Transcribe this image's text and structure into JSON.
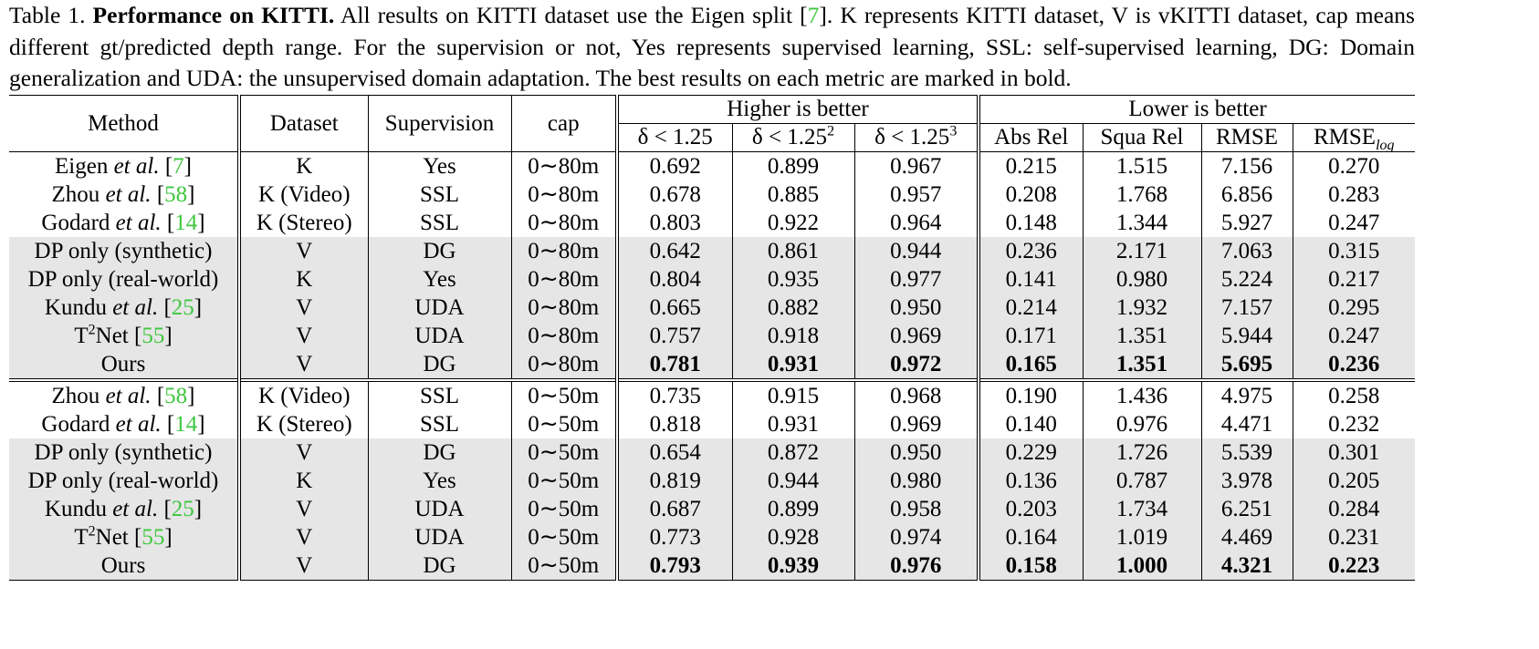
{
  "caption": [
    {
      "t": "Table 1. "
    },
    {
      "t": "Performance on KITTI.",
      "b": true
    },
    {
      "t": " All results on KITTI dataset use the Eigen split ["
    },
    {
      "t": "7",
      "ref": true
    },
    {
      "t": "]. K represents KITTI dataset, V is vKITTI dataset, cap means different gt/predicted depth range. For the supervision or not, Yes represents supervised learning, SSL: self-supervised learning, DG: Domain generalization and UDA: the unsupervised domain adaptation. The best results on each metric are marked in bold."
    }
  ],
  "table": {
    "header": {
      "method": "Method",
      "dataset": "Dataset",
      "supervision": "Supervision",
      "cap": "cap",
      "higher": "Higher is better",
      "lower": "Lower is better",
      "metrics": [
        {
          "text": "δ < 1.25"
        },
        {
          "text": "δ < 1.25",
          "sup": "2"
        },
        {
          "text": "δ < 1.25",
          "sup": "3"
        },
        {
          "text": "Abs Rel"
        },
        {
          "text": "Squa Rel"
        },
        {
          "text": "RMSE"
        },
        {
          "text": "RMSE",
          "sub": "log"
        }
      ]
    },
    "groups": [
      {
        "rows": [
          {
            "method": [
              {
                "t": "Eigen "
              },
              {
                "t": "et al.",
                "i": true
              },
              {
                "t": " ["
              },
              {
                "t": "7",
                "ref": true
              },
              {
                "t": "]"
              }
            ],
            "cells": [
              "K",
              "Yes",
              "0∼80m",
              "0.692",
              "0.899",
              "0.967",
              "0.215",
              "1.515",
              "7.156",
              "0.270"
            ],
            "shaded": false,
            "bold": false
          },
          {
            "method": [
              {
                "t": "Zhou "
              },
              {
                "t": "et al.",
                "i": true
              },
              {
                "t": " ["
              },
              {
                "t": "58",
                "ref": true
              },
              {
                "t": "]"
              }
            ],
            "cells": [
              "K (Video)",
              "SSL",
              "0∼80m",
              "0.678",
              "0.885",
              "0.957",
              "0.208",
              "1.768",
              "6.856",
              "0.283"
            ],
            "shaded": false,
            "bold": false
          },
          {
            "method": [
              {
                "t": "Godard "
              },
              {
                "t": "et al.",
                "i": true
              },
              {
                "t": " ["
              },
              {
                "t": "14",
                "ref": true
              },
              {
                "t": "]"
              }
            ],
            "cells": [
              "K (Stereo)",
              "SSL",
              "0∼80m",
              "0.803",
              "0.922",
              "0.964",
              "0.148",
              "1.344",
              "5.927",
              "0.247"
            ],
            "shaded": false,
            "bold": false
          },
          {
            "method": [
              {
                "t": "DP only (synthetic)"
              }
            ],
            "cells": [
              "V",
              "DG",
              "0∼80m",
              "0.642",
              "0.861",
              "0.944",
              "0.236",
              "2.171",
              "7.063",
              "0.315"
            ],
            "shaded": true,
            "bold": false
          },
          {
            "method": [
              {
                "t": "DP only (real-world)"
              }
            ],
            "cells": [
              "K",
              "Yes",
              "0∼80m",
              "0.804",
              "0.935",
              "0.977",
              "0.141",
              "0.980",
              "5.224",
              "0.217"
            ],
            "shaded": true,
            "bold": false
          },
          {
            "method": [
              {
                "t": "Kundu "
              },
              {
                "t": "et al.",
                "i": true
              },
              {
                "t": " ["
              },
              {
                "t": "25",
                "ref": true
              },
              {
                "t": "]"
              }
            ],
            "cells": [
              "V",
              "UDA",
              "0∼80m",
              "0.665",
              "0.882",
              "0.950",
              "0.214",
              "1.932",
              "7.157",
              "0.295"
            ],
            "shaded": true,
            "bold": false
          },
          {
            "method": [
              {
                "t": "T"
              },
              {
                "t": "2",
                "sup": true
              },
              {
                "t": "Net ["
              },
              {
                "t": "55",
                "ref": true
              },
              {
                "t": "]"
              }
            ],
            "cells": [
              "V",
              "UDA",
              "0∼80m",
              "0.757",
              "0.918",
              "0.969",
              "0.171",
              "1.351",
              "5.944",
              "0.247"
            ],
            "shaded": true,
            "bold": false
          },
          {
            "method": [
              {
                "t": "Ours"
              }
            ],
            "cells": [
              "V",
              "DG",
              "0∼80m",
              "0.781",
              "0.931",
              "0.972",
              "0.165",
              "1.351",
              "5.695",
              "0.236"
            ],
            "shaded": true,
            "bold": true
          }
        ]
      },
      {
        "rows": [
          {
            "method": [
              {
                "t": "Zhou "
              },
              {
                "t": "et al.",
                "i": true
              },
              {
                "t": " ["
              },
              {
                "t": "58",
                "ref": true
              },
              {
                "t": "]"
              }
            ],
            "cells": [
              "K (Video)",
              "SSL",
              "0∼50m",
              "0.735",
              "0.915",
              "0.968",
              "0.190",
              "1.436",
              "4.975",
              "0.258"
            ],
            "shaded": false,
            "bold": false
          },
          {
            "method": [
              {
                "t": "Godard "
              },
              {
                "t": "et al.",
                "i": true
              },
              {
                "t": " ["
              },
              {
                "t": "14",
                "ref": true
              },
              {
                "t": "]"
              }
            ],
            "cells": [
              "K (Stereo)",
              "SSL",
              "0∼50m",
              "0.818",
              "0.931",
              "0.969",
              "0.140",
              "0.976",
              "4.471",
              "0.232"
            ],
            "shaded": false,
            "bold": false
          },
          {
            "method": [
              {
                "t": "DP only (synthetic)"
              }
            ],
            "cells": [
              "V",
              "DG",
              "0∼50m",
              "0.654",
              "0.872",
              "0.950",
              "0.229",
              "1.726",
              "5.539",
              "0.301"
            ],
            "shaded": true,
            "bold": false
          },
          {
            "method": [
              {
                "t": "DP only (real-world)"
              }
            ],
            "cells": [
              "K",
              "Yes",
              "0∼50m",
              "0.819",
              "0.944",
              "0.980",
              "0.136",
              "0.787",
              "3.978",
              "0.205"
            ],
            "shaded": true,
            "bold": false
          },
          {
            "method": [
              {
                "t": "Kundu "
              },
              {
                "t": "et al.",
                "i": true
              },
              {
                "t": " ["
              },
              {
                "t": "25",
                "ref": true
              },
              {
                "t": "]"
              }
            ],
            "cells": [
              "V",
              "UDA",
              "0∼50m",
              "0.687",
              "0.899",
              "0.958",
              "0.203",
              "1.734",
              "6.251",
              "0.284"
            ],
            "shaded": true,
            "bold": false
          },
          {
            "method": [
              {
                "t": "T"
              },
              {
                "t": "2",
                "sup": true
              },
              {
                "t": "Net ["
              },
              {
                "t": "55",
                "ref": true
              },
              {
                "t": "]"
              }
            ],
            "cells": [
              "V",
              "UDA",
              "0∼50m",
              "0.773",
              "0.928",
              "0.974",
              "0.164",
              "1.019",
              "4.469",
              "0.231"
            ],
            "shaded": true,
            "bold": false
          },
          {
            "method": [
              {
                "t": "Ours"
              }
            ],
            "cells": [
              "V",
              "DG",
              "0∼50m",
              "0.793",
              "0.939",
              "0.976",
              "0.158",
              "1.000",
              "4.321",
              "0.223"
            ],
            "shaded": true,
            "bold": true
          }
        ]
      }
    ]
  }
}
